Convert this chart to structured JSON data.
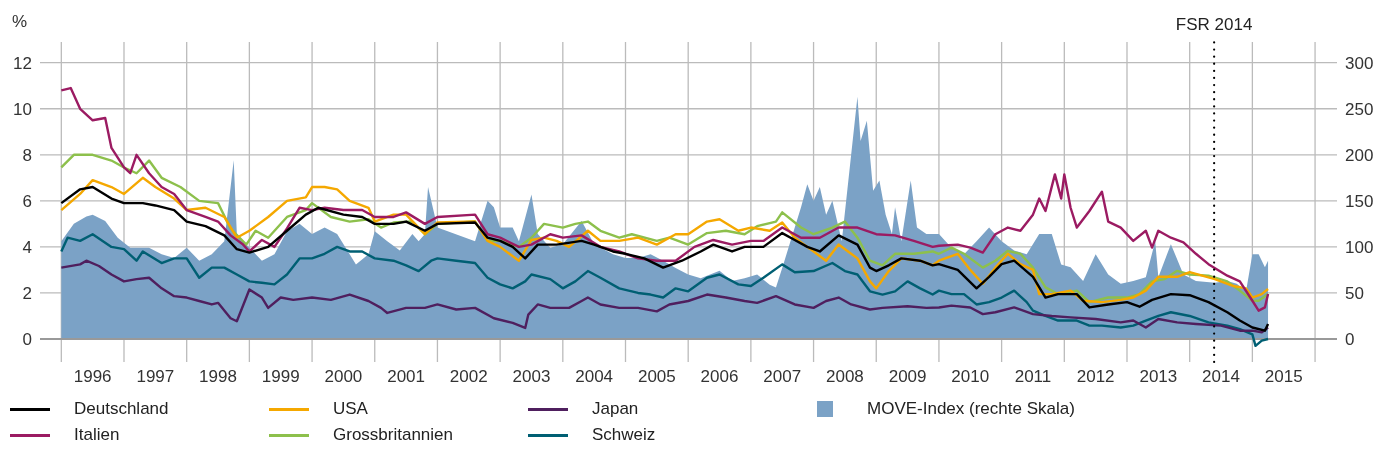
{
  "chart_data": {
    "type": "line",
    "ylabel": "%",
    "xlim": [
      1995.66,
      2016.35
    ],
    "xticks": [
      {
        "value": 1996,
        "label": null
      },
      {
        "value": 1996.5,
        "label": "1996"
      },
      {
        "value": 1997,
        "label": null
      },
      {
        "value": 1997.5,
        "label": "1997"
      },
      {
        "value": 1998,
        "label": null
      },
      {
        "value": 1998.5,
        "label": "1998"
      },
      {
        "value": 1999,
        "label": null
      },
      {
        "value": 1999.5,
        "label": "1999"
      },
      {
        "value": 2000,
        "label": null
      },
      {
        "value": 2000.5,
        "label": "2000"
      },
      {
        "value": 2001,
        "label": null
      },
      {
        "value": 2001.5,
        "label": "2001"
      },
      {
        "value": 2002,
        "label": null
      },
      {
        "value": 2002.5,
        "label": "2002"
      },
      {
        "value": 2003,
        "label": null
      },
      {
        "value": 2003.5,
        "label": "2003"
      },
      {
        "value": 2004,
        "label": null
      },
      {
        "value": 2004.5,
        "label": "2004"
      },
      {
        "value": 2005,
        "label": null
      },
      {
        "value": 2005.5,
        "label": "2005"
      },
      {
        "value": 2006,
        "label": null
      },
      {
        "value": 2006.5,
        "label": "2006"
      },
      {
        "value": 2007,
        "label": null
      },
      {
        "value": 2007.5,
        "label": "2007"
      },
      {
        "value": 2008,
        "label": null
      },
      {
        "value": 2008.5,
        "label": "2008"
      },
      {
        "value": 2009,
        "label": null
      },
      {
        "value": 2009.5,
        "label": "2009"
      },
      {
        "value": 2010,
        "label": null
      },
      {
        "value": 2010.5,
        "label": "2010"
      },
      {
        "value": 2011,
        "label": null
      },
      {
        "value": 2011.5,
        "label": "2011"
      },
      {
        "value": 2012,
        "label": null
      },
      {
        "value": 2012.5,
        "label": "2012"
      },
      {
        "value": 2013,
        "label": null
      },
      {
        "value": 2013.5,
        "label": "2013"
      },
      {
        "value": 2014,
        "label": null
      },
      {
        "value": 2014.5,
        "label": "2014"
      },
      {
        "value": 2015,
        "label": null
      },
      {
        "value": 2015.5,
        "label": "2015"
      },
      {
        "value": 2016,
        "label": null
      }
    ],
    "ylim": [
      -1,
      12.9
    ],
    "yticks": [
      0,
      2,
      4,
      6,
      8,
      10,
      12
    ],
    "y2lim": [
      -25,
      322.5
    ],
    "y2ticks": [
      0,
      50,
      100,
      150,
      200,
      250,
      300
    ],
    "grid": true,
    "legend": "bottom",
    "ref_lines": [
      {
        "axis": "x",
        "value": 2014.39,
        "label": "FSR 2014",
        "color": "#000000",
        "line_style": "dotted"
      }
    ],
    "series": [
      {
        "name": "Deutschland",
        "color": "#000000",
        "x": [
          1996.0,
          1996.3,
          1996.5,
          1996.8,
          1997.0,
          1997.3,
          1997.5,
          1997.8,
          1998.0,
          1998.3,
          1998.6,
          1998.8,
          1999.0,
          1999.3,
          1999.6,
          1999.9,
          2000.1,
          2000.5,
          2000.8,
          2001.0,
          2001.3,
          2001.5,
          2001.8,
          2002.0,
          2002.6,
          2002.8,
          2003.0,
          2003.2,
          2003.4,
          2003.6,
          2003.9,
          2004.3,
          2004.5,
          2004.8,
          2005.0,
          2005.3,
          2005.6,
          2005.9,
          2006.2,
          2006.4,
          2006.7,
          2006.9,
          2007.2,
          2007.5,
          2007.7,
          2007.9,
          2008.1,
          2008.4,
          2008.7,
          2008.9,
          2009.0,
          2009.2,
          2009.4,
          2009.7,
          2009.9,
          2010.0,
          2010.3,
          2010.6,
          2010.8,
          2011.0,
          2011.2,
          2011.5,
          2011.7,
          2011.9,
          2012.2,
          2012.4,
          2012.7,
          2013.0,
          2013.2,
          2013.4,
          2013.7,
          2014.0,
          2014.3,
          2014.6,
          2014.8,
          2015.0,
          2015.2,
          2015.25
        ],
        "values": [
          5.9,
          6.5,
          6.6,
          6.1,
          5.9,
          5.9,
          5.8,
          5.6,
          5.1,
          4.9,
          4.5,
          3.9,
          3.75,
          4.0,
          4.7,
          5.4,
          5.7,
          5.4,
          5.3,
          5.0,
          5.0,
          5.1,
          4.7,
          5.0,
          5.06,
          4.4,
          4.26,
          4.0,
          3.5,
          4.1,
          4.1,
          4.26,
          4.1,
          3.8,
          3.7,
          3.5,
          3.1,
          3.4,
          3.8,
          4.1,
          3.8,
          4.0,
          4.0,
          4.6,
          4.3,
          4.0,
          3.8,
          4.5,
          4.1,
          3.1,
          2.95,
          3.2,
          3.5,
          3.4,
          3.2,
          3.25,
          3.0,
          2.2,
          2.7,
          3.25,
          3.4,
          2.7,
          1.8,
          1.95,
          1.95,
          1.37,
          1.5,
          1.6,
          1.4,
          1.7,
          1.95,
          1.9,
          1.6,
          1.16,
          0.8,
          0.5,
          0.36,
          0.65
        ]
      },
      {
        "name": "Italien",
        "color": "#9b1b62",
        "x": [
          1996.0,
          1996.15,
          1996.3,
          1996.5,
          1996.7,
          1996.8,
          1997.0,
          1997.1,
          1997.2,
          1997.4,
          1997.6,
          1997.8,
          1998.0,
          1998.3,
          1998.5,
          1998.7,
          1998.9,
          1999.0,
          1999.2,
          1999.4,
          1999.6,
          1999.8,
          2000.0,
          2000.2,
          2000.5,
          2000.8,
          2001.0,
          2001.3,
          2001.5,
          2001.8,
          2002.0,
          2002.6,
          2002.8,
          2003.0,
          2003.3,
          2003.5,
          2003.8,
          2004.0,
          2004.3,
          2004.6,
          2004.9,
          2005.2,
          2005.5,
          2005.8,
          2006.1,
          2006.4,
          2006.7,
          2007.0,
          2007.2,
          2007.5,
          2007.8,
          2008.1,
          2008.4,
          2008.7,
          2009.0,
          2009.3,
          2009.6,
          2009.9,
          2010.0,
          2010.3,
          2010.5,
          2010.7,
          2010.9,
          2011.1,
          2011.3,
          2011.5,
          2011.6,
          2011.7,
          2011.85,
          2011.95,
          2012.0,
          2012.1,
          2012.2,
          2012.4,
          2012.6,
          2012.7,
          2012.9,
          2013.1,
          2013.3,
          2013.4,
          2013.5,
          2013.7,
          2013.9,
          2014.1,
          2014.3,
          2014.6,
          2014.8,
          2015.0,
          2015.1,
          2015.2,
          2015.25
        ],
        "values": [
          10.8,
          10.9,
          10.0,
          9.5,
          9.6,
          8.3,
          7.45,
          7.2,
          8.0,
          7.2,
          6.6,
          6.3,
          5.6,
          5.3,
          5.1,
          4.5,
          4.1,
          3.8,
          4.3,
          4.0,
          4.8,
          5.7,
          5.6,
          5.7,
          5.6,
          5.6,
          5.3,
          5.3,
          5.5,
          5.0,
          5.3,
          5.4,
          4.55,
          4.4,
          4.0,
          4.1,
          4.55,
          4.4,
          4.5,
          4.0,
          3.8,
          3.5,
          3.4,
          3.4,
          4.0,
          4.3,
          4.1,
          4.26,
          4.26,
          4.84,
          4.4,
          4.4,
          4.84,
          4.84,
          4.55,
          4.5,
          4.26,
          4.0,
          4.05,
          4.1,
          3.97,
          3.75,
          4.55,
          4.84,
          4.7,
          5.4,
          6.1,
          5.56,
          7.15,
          6.1,
          7.15,
          5.7,
          4.84,
          5.56,
          6.4,
          5.1,
          4.84,
          4.26,
          4.7,
          3.97,
          4.7,
          4.4,
          4.2,
          3.7,
          3.25,
          2.75,
          2.5,
          1.66,
          1.23,
          1.37,
          1.95
        ]
      },
      {
        "name": "USA",
        "color": "#f5a800",
        "x": [
          1996.0,
          1996.3,
          1996.5,
          1996.8,
          1997.0,
          1997.3,
          1997.5,
          1997.8,
          1998.0,
          1998.3,
          1998.6,
          1998.8,
          1999.0,
          1999.3,
          1999.6,
          1999.9,
          2000.0,
          2000.2,
          2000.4,
          2000.6,
          2000.9,
          2001.0,
          2001.3,
          2001.5,
          2001.8,
          2002.0,
          2002.6,
          2002.8,
          2003.0,
          2003.3,
          2003.5,
          2003.7,
          2003.9,
          2004.1,
          2004.4,
          2004.6,
          2004.9,
          2005.2,
          2005.5,
          2005.8,
          2006.0,
          2006.3,
          2006.5,
          2006.8,
          2007.0,
          2007.3,
          2007.5,
          2007.7,
          2007.9,
          2008.2,
          2008.4,
          2008.7,
          2008.9,
          2009.0,
          2009.2,
          2009.4,
          2009.7,
          2009.9,
          2010.0,
          2010.3,
          2010.5,
          2010.7,
          2010.9,
          2011.1,
          2011.3,
          2011.5,
          2011.6,
          2011.8,
          2012.1,
          2012.3,
          2012.6,
          2012.9,
          2013.1,
          2013.3,
          2013.5,
          2013.8,
          2014.0,
          2014.4,
          2014.7,
          2014.9,
          2015.0,
          2015.15,
          2015.25
        ],
        "values": [
          5.6,
          6.3,
          6.9,
          6.6,
          6.3,
          7.0,
          6.6,
          6.1,
          5.6,
          5.7,
          5.3,
          4.4,
          4.7,
          5.3,
          6.0,
          6.15,
          6.6,
          6.6,
          6.5,
          6.0,
          5.7,
          5.1,
          5.4,
          5.4,
          4.55,
          5.06,
          5.1,
          4.26,
          4.0,
          3.4,
          4.3,
          4.4,
          4.26,
          4.0,
          4.7,
          4.26,
          4.26,
          4.4,
          4.1,
          4.55,
          4.55,
          5.1,
          5.2,
          4.7,
          4.84,
          4.7,
          5.06,
          4.4,
          4.0,
          3.4,
          4.1,
          3.5,
          2.5,
          2.2,
          2.95,
          3.5,
          3.4,
          3.2,
          3.4,
          3.7,
          3.0,
          2.4,
          3.1,
          3.7,
          3.25,
          3.0,
          1.95,
          1.95,
          2.1,
          1.66,
          1.6,
          1.7,
          1.8,
          2.1,
          2.7,
          2.7,
          2.9,
          2.6,
          2.3,
          2.2,
          1.8,
          1.95,
          2.17
        ]
      },
      {
        "name": "Grossbritannien",
        "color": "#8dc04c",
        "x": [
          1996.0,
          1996.2,
          1996.5,
          1996.8,
          1997.0,
          1997.2,
          1997.4,
          1997.6,
          1997.9,
          1998.2,
          1998.5,
          1998.7,
          1998.95,
          1999.1,
          1999.3,
          1999.6,
          1999.9,
          2000.0,
          2000.3,
          2000.6,
          2000.9,
          2001.1,
          2001.3,
          2001.6,
          2001.8,
          2002.0,
          2002.6,
          2002.8,
          2003.0,
          2003.3,
          2003.5,
          2003.7,
          2004.0,
          2004.2,
          2004.4,
          2004.6,
          2004.9,
          2005.1,
          2005.5,
          2005.7,
          2006.0,
          2006.3,
          2006.6,
          2006.9,
          2007.1,
          2007.4,
          2007.5,
          2007.8,
          2008.0,
          2008.3,
          2008.5,
          2008.7,
          2008.9,
          2009.1,
          2009.3,
          2009.6,
          2009.9,
          2010.0,
          2010.2,
          2010.4,
          2010.7,
          2010.9,
          2011.1,
          2011.3,
          2011.5,
          2011.7,
          2011.9,
          2012.2,
          2012.4,
          2012.7,
          2013.0,
          2013.2,
          2013.4,
          2013.6,
          2013.8,
          2014.0,
          2014.3,
          2014.6,
          2014.8,
          2015.0,
          2015.1,
          2015.25
        ],
        "values": [
          7.45,
          8.0,
          8.0,
          7.75,
          7.45,
          7.2,
          7.75,
          7.0,
          6.6,
          6.0,
          5.9,
          4.8,
          4.1,
          4.7,
          4.4,
          5.3,
          5.6,
          5.9,
          5.3,
          5.1,
          5.2,
          4.84,
          5.06,
          5.1,
          4.55,
          5.0,
          5.1,
          4.26,
          4.26,
          4.0,
          4.4,
          5.0,
          4.84,
          5.0,
          5.1,
          4.7,
          4.4,
          4.55,
          4.26,
          4.4,
          4.1,
          4.6,
          4.7,
          4.55,
          4.9,
          5.1,
          5.5,
          4.84,
          4.55,
          4.84,
          5.1,
          4.4,
          3.4,
          3.2,
          3.7,
          3.7,
          3.8,
          3.7,
          3.97,
          3.7,
          3.1,
          3.4,
          3.83,
          3.7,
          3.1,
          2.24,
          1.95,
          2.1,
          1.6,
          1.8,
          1.8,
          1.95,
          2.5,
          2.6,
          2.96,
          2.8,
          2.75,
          2.5,
          2.1,
          1.66,
          1.66,
          1.95
        ]
      },
      {
        "name": "Japan",
        "color": "#4f1f5e",
        "x": [
          1996.0,
          1996.3,
          1996.4,
          1996.6,
          1996.8,
          1997.0,
          1997.2,
          1997.4,
          1997.6,
          1997.8,
          1998.0,
          1998.2,
          1998.4,
          1998.5,
          1998.7,
          1998.8,
          1998.95,
          1999.0,
          1999.2,
          1999.3,
          1999.5,
          1999.7,
          2000.0,
          2000.3,
          2000.6,
          2000.9,
          2001.1,
          2001.2,
          2001.5,
          2001.8,
          2002.0,
          2002.3,
          2002.6,
          2002.9,
          2003.2,
          2003.4,
          2003.45,
          2003.6,
          2003.8,
          2004.1,
          2004.3,
          2004.4,
          2004.6,
          2004.9,
          2005.2,
          2005.5,
          2005.7,
          2006.0,
          2006.3,
          2006.6,
          2006.9,
          2007.1,
          2007.4,
          2007.7,
          2008.0,
          2008.2,
          2008.4,
          2008.6,
          2008.9,
          2009.1,
          2009.5,
          2009.8,
          2010.0,
          2010.2,
          2010.5,
          2010.7,
          2010.9,
          2011.2,
          2011.5,
          2011.8,
          2012.1,
          2012.5,
          2012.9,
          2013.1,
          2013.3,
          2013.5,
          2013.8,
          2014.1,
          2014.5,
          2014.8,
          2015.0,
          2015.15,
          2015.25
        ],
        "values": [
          3.1,
          3.24,
          3.4,
          3.17,
          2.8,
          2.5,
          2.6,
          2.66,
          2.2,
          1.86,
          1.8,
          1.65,
          1.5,
          1.57,
          0.9,
          0.77,
          1.8,
          2.15,
          1.8,
          1.35,
          1.8,
          1.7,
          1.8,
          1.7,
          1.93,
          1.65,
          1.35,
          1.13,
          1.35,
          1.35,
          1.5,
          1.28,
          1.35,
          0.9,
          0.7,
          0.48,
          1.06,
          1.5,
          1.35,
          1.35,
          1.65,
          1.8,
          1.5,
          1.35,
          1.35,
          1.2,
          1.5,
          1.65,
          1.93,
          1.8,
          1.65,
          1.57,
          1.86,
          1.5,
          1.35,
          1.65,
          1.8,
          1.5,
          1.28,
          1.35,
          1.42,
          1.35,
          1.37,
          1.45,
          1.37,
          1.08,
          1.16,
          1.37,
          1.08,
          1.0,
          0.94,
          0.87,
          0.72,
          0.8,
          0.5,
          0.87,
          0.72,
          0.65,
          0.58,
          0.36,
          0.36,
          0.29,
          0.5
        ]
      },
      {
        "name": "Schweiz",
        "color": "#005f73",
        "x": [
          1996.0,
          1996.1,
          1996.3,
          1996.5,
          1996.8,
          1997.0,
          1997.2,
          1997.3,
          1997.6,
          1997.8,
          1998.0,
          1998.2,
          1998.4,
          1998.6,
          1998.8,
          1999.0,
          1999.2,
          1999.4,
          1999.6,
          1999.8,
          2000.0,
          2000.2,
          2000.4,
          2000.6,
          2000.8,
          2001.0,
          2001.3,
          2001.5,
          2001.7,
          2001.9,
          2002.0,
          2002.3,
          2002.6,
          2002.8,
          2003.0,
          2003.2,
          2003.4,
          2003.5,
          2003.8,
          2004.0,
          2004.2,
          2004.4,
          2004.6,
          2004.9,
          2005.2,
          2005.4,
          2005.6,
          2005.8,
          2006.0,
          2006.3,
          2006.5,
          2006.8,
          2007.0,
          2007.2,
          2007.5,
          2007.7,
          2008.0,
          2008.3,
          2008.5,
          2008.7,
          2008.9,
          2009.1,
          2009.3,
          2009.5,
          2009.7,
          2009.9,
          2010.0,
          2010.2,
          2010.4,
          2010.6,
          2010.8,
          2011.0,
          2011.2,
          2011.4,
          2011.5,
          2011.7,
          2011.9,
          2012.2,
          2012.4,
          2012.6,
          2012.9,
          2013.1,
          2013.3,
          2013.5,
          2013.7,
          2014.0,
          2014.3,
          2014.6,
          2014.8,
          2015.0,
          2015.05,
          2015.15,
          2015.25
        ],
        "values": [
          3.8,
          4.4,
          4.26,
          4.55,
          4.0,
          3.9,
          3.4,
          3.8,
          3.3,
          3.5,
          3.5,
          2.66,
          3.1,
          3.1,
          2.8,
          2.5,
          2.44,
          2.37,
          2.8,
          3.5,
          3.5,
          3.7,
          4.0,
          3.8,
          3.8,
          3.5,
          3.4,
          3.2,
          2.95,
          3.4,
          3.5,
          3.4,
          3.3,
          2.66,
          2.37,
          2.2,
          2.5,
          2.8,
          2.6,
          2.2,
          2.5,
          2.95,
          2.66,
          2.2,
          2.0,
          1.93,
          1.8,
          2.2,
          2.07,
          2.66,
          2.8,
          2.37,
          2.3,
          2.66,
          3.24,
          2.9,
          2.95,
          3.3,
          2.95,
          2.8,
          2.07,
          1.93,
          2.07,
          2.5,
          2.2,
          1.93,
          2.1,
          1.95,
          1.95,
          1.5,
          1.6,
          1.8,
          2.1,
          1.6,
          1.23,
          1.0,
          0.8,
          0.8,
          0.58,
          0.58,
          0.5,
          0.58,
          0.8,
          1.0,
          1.16,
          1.0,
          0.72,
          0.58,
          0.43,
          0.2,
          -0.3,
          -0.07,
          0
        ]
      },
      {
        "name": "MOVE-Index (rechte Skala)",
        "type": "area",
        "axis": "y2",
        "color": "#7ba2c6",
        "x": [
          1996.0,
          1996.2,
          1996.4,
          1996.5,
          1996.7,
          1996.9,
          1997.1,
          1997.4,
          1997.6,
          1997.8,
          1998.0,
          1998.2,
          1998.4,
          1998.6,
          1998.75,
          1998.8,
          1999.0,
          1999.2,
          1999.4,
          1999.6,
          1999.8,
          2000.0,
          2000.2,
          2000.4,
          2000.6,
          2000.7,
          2000.9,
          2001.0,
          2001.2,
          2001.4,
          2001.6,
          2001.7,
          2001.8,
          2001.85,
          2002.0,
          2002.6,
          2002.8,
          2002.9,
          2003.0,
          2003.2,
          2003.3,
          2003.5,
          2003.6,
          2003.8,
          2004.0,
          2004.3,
          2004.5,
          2004.8,
          2005.0,
          2005.2,
          2005.4,
          2005.6,
          2005.8,
          2006.0,
          2006.2,
          2006.5,
          2006.7,
          2006.9,
          2007.1,
          2007.3,
          2007.4,
          2007.5,
          2007.6,
          2007.8,
          2007.9,
          2008.0,
          2008.1,
          2008.2,
          2008.3,
          2008.45,
          2008.7,
          2008.75,
          2008.85,
          2008.95,
          2009.05,
          2009.15,
          2009.25,
          2009.3,
          2009.4,
          2009.55,
          2009.65,
          2009.8,
          2010.0,
          2010.2,
          2010.4,
          2010.6,
          2010.8,
          2011.0,
          2011.2,
          2011.4,
          2011.6,
          2011.8,
          2011.95,
          2012.1,
          2012.3,
          2012.5,
          2012.7,
          2012.9,
          2013.1,
          2013.3,
          2013.45,
          2013.5,
          2013.7,
          2013.9,
          2014.1,
          2014.4,
          2014.6,
          2014.75,
          2014.9,
          2015.0,
          2015.1,
          2015.2,
          2015.25
        ],
        "values": [
          106,
          125,
          133,
          135,
          128,
          110,
          99,
          99,
          92,
          88,
          99,
          85,
          92,
          106,
          194,
          114,
          99,
          85,
          92,
          117,
          125,
          114,
          121,
          114,
          92,
          81,
          92,
          117,
          106,
          96,
          114,
          106,
          114,
          165,
          121,
          106,
          150,
          143,
          121,
          121,
          106,
          157,
          114,
          99,
          103,
          128,
          103,
          92,
          88,
          88,
          92,
          85,
          77,
          70,
          66,
          74,
          63,
          66,
          70,
          59,
          56,
          77,
          99,
          143,
          168,
          150,
          165,
          135,
          150,
          106,
          263,
          215,
          237,
          161,
          172,
          135,
          114,
          143,
          106,
          172,
          121,
          114,
          114,
          99,
          92,
          106,
          121,
          106,
          96,
          92,
          114,
          114,
          81,
          78,
          63,
          92,
          70,
          60,
          63,
          67,
          106,
          67,
          103,
          70,
          63,
          61,
          63,
          60,
          52,
          92,
          92,
          78,
          85
        ]
      }
    ]
  }
}
